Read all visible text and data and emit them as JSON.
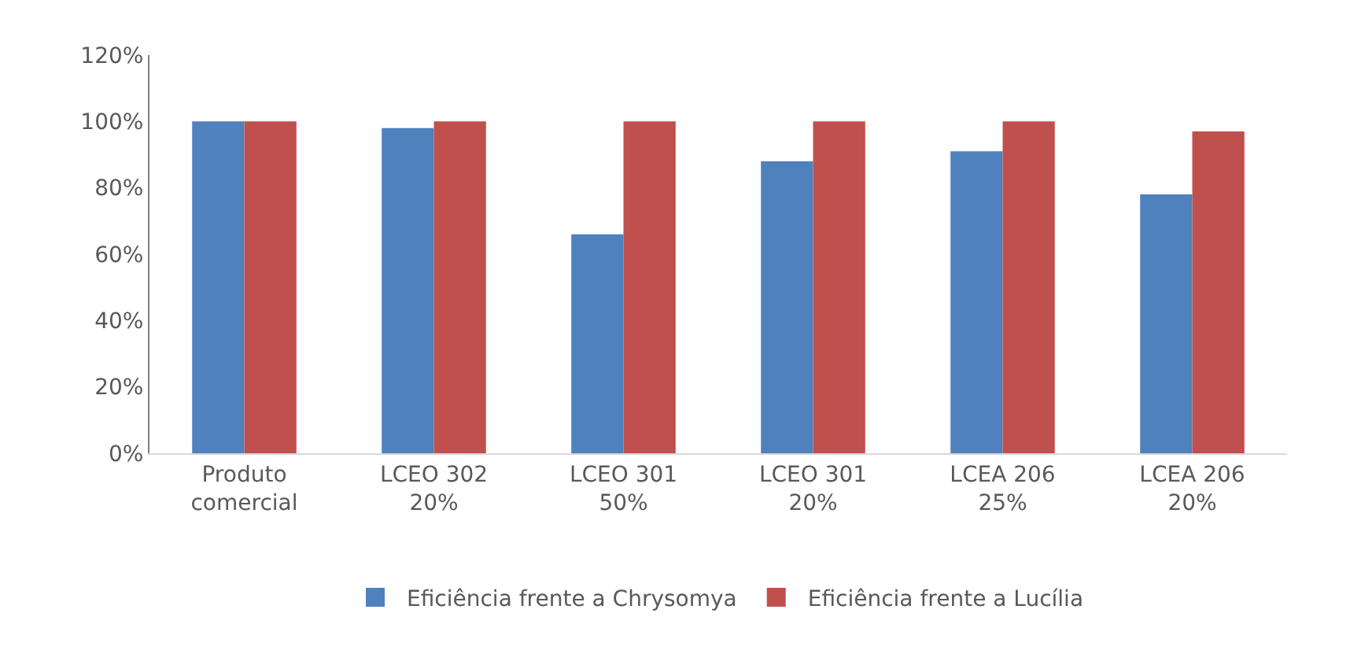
{
  "chart_data": {
    "type": "bar",
    "categories": [
      "Produto comercial",
      "LCEO 302 20%",
      "LCEO 301 50%",
      "LCEO 301 20%",
      "LCEA 206 25%",
      "LCEA 206 20%"
    ],
    "series": [
      {
        "name": "Eficiência frente a Chrysomya",
        "color": "#4f81bd",
        "values": [
          100,
          98,
          66,
          88,
          91,
          78
        ]
      },
      {
        "name": "Eficiência frente a Lucília",
        "color": "#c0504d",
        "values": [
          100,
          100,
          100,
          100,
          100,
          97
        ]
      }
    ],
    "ylim": [
      0,
      120
    ],
    "yticks": [
      {
        "value": 0,
        "label": "0%"
      },
      {
        "value": 20,
        "label": "20%"
      },
      {
        "value": 40,
        "label": "40%"
      },
      {
        "value": 60,
        "label": "60%"
      },
      {
        "value": 80,
        "label": "80%"
      },
      {
        "value": 100,
        "label": "100%"
      },
      {
        "value": 120,
        "label": "120%"
      }
    ],
    "grid": false,
    "legend": "bottom"
  }
}
